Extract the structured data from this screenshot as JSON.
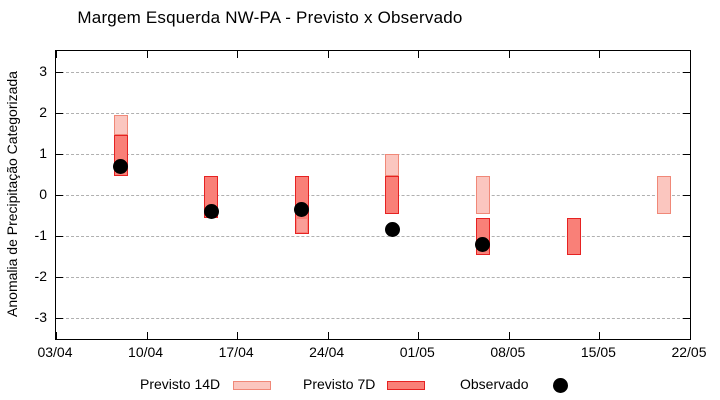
{
  "chart_data": {
    "type": "bar",
    "title": "Margem Esquerda NW-PA - Previsto x Observado",
    "ylabel": "Anomalia de Precipitação Categorizada",
    "xlabel": "",
    "grid": "dashed-horizontal",
    "legend_position": "bottom",
    "categories": [
      "08/04",
      "15/04",
      "22/04",
      "29/04",
      "06/05",
      "13/05",
      "20/05"
    ],
    "x_axis": {
      "tick_labels": [
        "03/04",
        "10/04",
        "17/04",
        "24/04",
        "01/05",
        "08/05",
        "15/05",
        "22/05"
      ],
      "tick_days": [
        0,
        7,
        14,
        21,
        28,
        35,
        42,
        49
      ],
      "range_days": [
        0,
        49
      ],
      "bar_days": [
        5,
        12,
        19,
        26,
        33,
        40,
        47
      ]
    },
    "y_axis": {
      "ticks": [
        -3,
        -2,
        -1,
        0,
        1,
        2,
        3
      ],
      "lim": [
        -3.5,
        3.5
      ]
    },
    "series": [
      {
        "name": "Previsto 14D",
        "type": "range_bar",
        "ranges": [
          [
            1.45,
            1.95
          ],
          null,
          [
            -0.95,
            -0.55
          ],
          [
            0.45,
            1.0
          ],
          [
            -0.45,
            0.45
          ],
          null,
          [
            -0.45,
            0.45
          ]
        ]
      },
      {
        "name": "Previsto 7D",
        "type": "range_bar",
        "ranges": [
          [
            0.45,
            1.45
          ],
          [
            -0.55,
            0.45
          ],
          [
            -0.95,
            0.45
          ],
          [
            -0.45,
            0.45
          ],
          [
            -1.45,
            -0.55
          ],
          [
            -1.45,
            -0.55
          ],
          null
        ]
      },
      {
        "name": "Observado",
        "type": "scatter",
        "values": [
          0.7,
          -0.4,
          -0.35,
          -0.85,
          -1.2,
          null,
          null
        ]
      }
    ]
  },
  "legend": {
    "items": [
      {
        "label": "Previsto 14D"
      },
      {
        "label": "Previsto 7D"
      },
      {
        "label": "Observado"
      }
    ]
  },
  "colors": {
    "p14_fill": "#fbc6bf",
    "p14_border": "#f08878",
    "p7_fill": "#f98078",
    "p7_border": "#e62222",
    "overlap_fill": "#fa9e98",
    "observado": "#000000",
    "grid": "#b0b0b0",
    "frame": "#000000"
  }
}
